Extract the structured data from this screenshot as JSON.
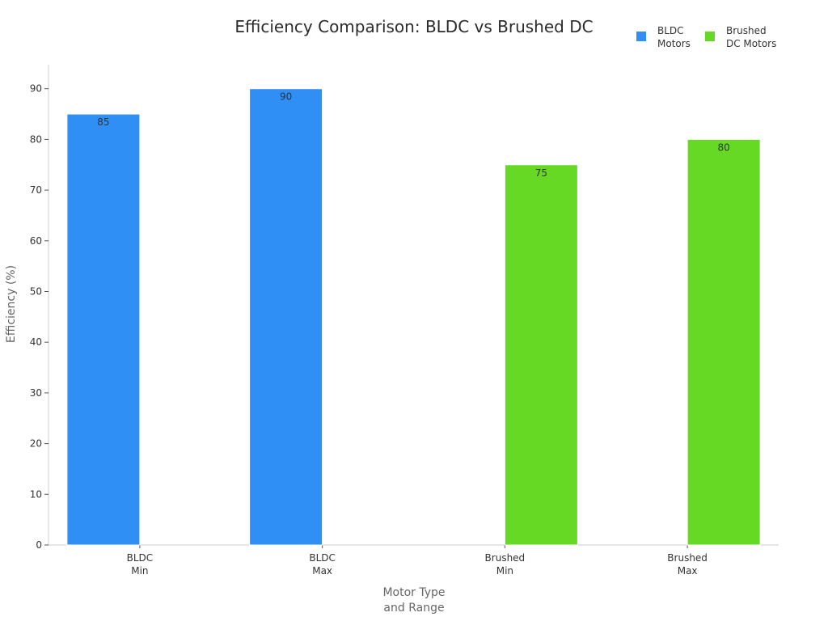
{
  "colors": {
    "bldc": "#2f8ff5",
    "brushed": "#66d924",
    "axis": "#cccccc",
    "text": "#333333"
  },
  "chart_data": {
    "type": "bar",
    "title": "Efficiency Comparison: BLDC vs Brushed DC",
    "xlabel": [
      "Motor Type",
      "and Range"
    ],
    "ylabel": "Efficiency (%)",
    "ylim": [
      0,
      95
    ],
    "yticks": [
      0,
      10,
      20,
      30,
      40,
      50,
      60,
      70,
      80,
      90
    ],
    "grid": false,
    "legend_position": "top-right",
    "categories": [
      [
        "BLDC",
        "Min"
      ],
      [
        "BLDC",
        "Max"
      ],
      [
        "Brushed",
        "Min"
      ],
      [
        "Brushed",
        "Max"
      ]
    ],
    "series": [
      {
        "name": "BLDC Motors",
        "legend_lines": [
          "BLDC",
          "Motors"
        ],
        "color": "#2f8ff5",
        "values": [
          85,
          90,
          null,
          null
        ]
      },
      {
        "name": "Brushed DC Motors",
        "legend_lines": [
          "Brushed",
          "DC Motors"
        ],
        "color": "#66d924",
        "values": [
          null,
          null,
          75,
          80
        ]
      }
    ]
  }
}
